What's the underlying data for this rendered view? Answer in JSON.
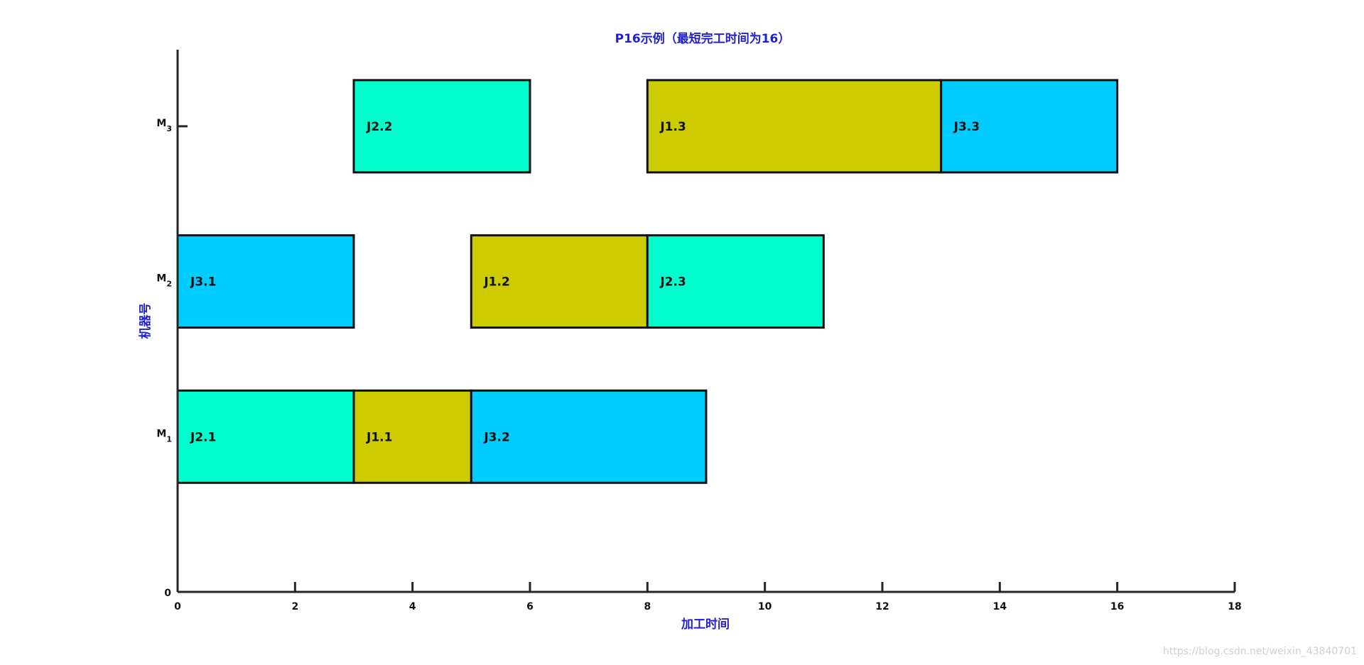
{
  "chart_data": {
    "type": "gantt",
    "title": "P16示例（最短完工时间为16）",
    "xlabel": "加工时间",
    "ylabel": "机器号",
    "xlim": [
      0,
      18
    ],
    "x_ticks": [
      0,
      2,
      4,
      6,
      8,
      10,
      12,
      14,
      16,
      18
    ],
    "machines": [
      {
        "level": 1,
        "label": "M",
        "sub": "1"
      },
      {
        "level": 2,
        "label": "M",
        "sub": "2"
      },
      {
        "level": 3,
        "label": "M",
        "sub": "3"
      }
    ],
    "y_zero_label": "0",
    "grid": false,
    "colors": {
      "J1": "#cccc00",
      "J2": "#00ffcc",
      "J3": "#00ccff",
      "axis": "#262626",
      "bar_border": "#111111",
      "title": "#1f1fd6"
    },
    "tasks": [
      {
        "label": "J2.1",
        "job": "J2",
        "machine": 1,
        "start": 0,
        "end": 3
      },
      {
        "label": "J1.1",
        "job": "J1",
        "machine": 1,
        "start": 3,
        "end": 5
      },
      {
        "label": "J3.2",
        "job": "J3",
        "machine": 1,
        "start": 5,
        "end": 9
      },
      {
        "label": "J3.1",
        "job": "J3",
        "machine": 2,
        "start": 0,
        "end": 3
      },
      {
        "label": "J1.2",
        "job": "J1",
        "machine": 2,
        "start": 5,
        "end": 8
      },
      {
        "label": "J2.3",
        "job": "J2",
        "machine": 2,
        "start": 8,
        "end": 11
      },
      {
        "label": "J2.2",
        "job": "J2",
        "machine": 3,
        "start": 3,
        "end": 6
      },
      {
        "label": "J1.3",
        "job": "J1",
        "machine": 3,
        "start": 8,
        "end": 13
      },
      {
        "label": "J3.3",
        "job": "J3",
        "machine": 3,
        "start": 13,
        "end": 16
      }
    ]
  },
  "watermark": "https://blog.csdn.net/weixin_43840701"
}
